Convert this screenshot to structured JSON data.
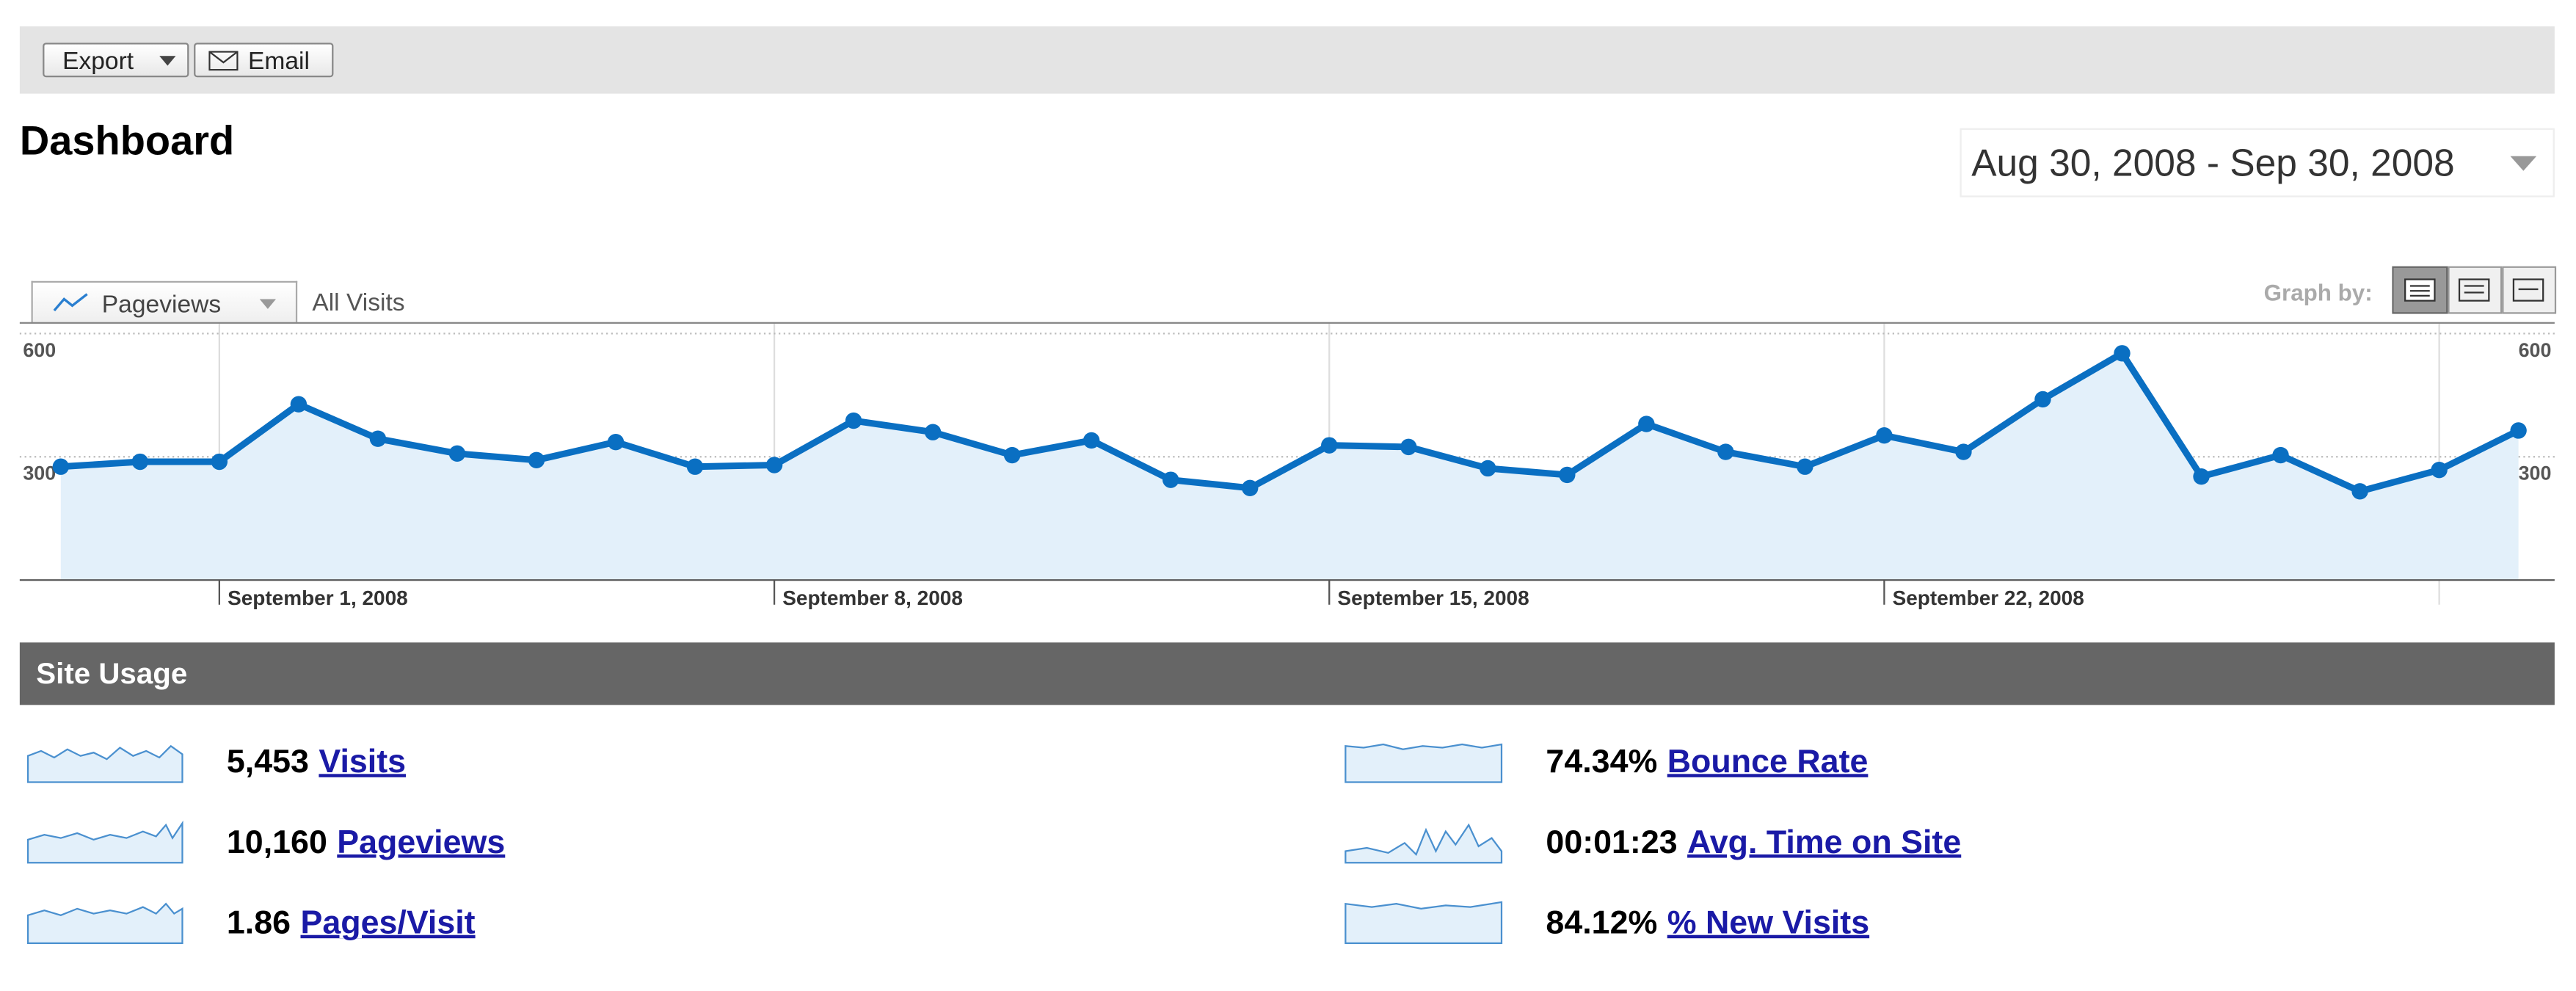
{
  "toolbar": {
    "export": "Export",
    "email": "Email"
  },
  "title": "Dashboard",
  "date_range": "Aug 30, 2008 - Sep 30, 2008",
  "segment": "All Visits",
  "graph_by": "Graph by:",
  "chart_data": {
    "type": "line",
    "categories": [
      null,
      null,
      "September 1, 2008",
      null,
      null,
      null,
      null,
      null,
      null,
      "September 8, 2008",
      null,
      null,
      null,
      null,
      null,
      null,
      "September 15, 2008",
      null,
      null,
      null,
      null,
      null,
      null,
      "September 22, 2008",
      null,
      null,
      null,
      null,
      null,
      null,
      null,
      null
    ],
    "series": [
      {
        "name": "Pageviews",
        "color": "#0a6fc2",
        "values": [
          276,
          288,
          288,
          428,
          344,
          308,
          292,
          336,
          276,
          280,
          388,
          360,
          304,
          340,
          244,
          224,
          328,
          324,
          272,
          256,
          380,
          312,
          276,
          352,
          312,
          440,
          552,
          252,
          304,
          216,
          268,
          364
        ]
      }
    ],
    "ylim": [
      0,
      624
    ],
    "yticks": [
      300,
      600
    ],
    "grid": true
  },
  "site_usage": {
    "title": "Site Usage",
    "metrics": [
      {
        "value": "5,453",
        "label": "Visits"
      },
      {
        "value": "10,160",
        "label": "Pageviews"
      },
      {
        "value": "1.86",
        "label": "Pages/Visit"
      },
      {
        "value": "74.34%",
        "label": "Bounce Rate"
      },
      {
        "value": "00:01:23",
        "label": "Avg. Time on Site"
      },
      {
        "value": "84.12%",
        "label": "% New Visits"
      }
    ]
  }
}
